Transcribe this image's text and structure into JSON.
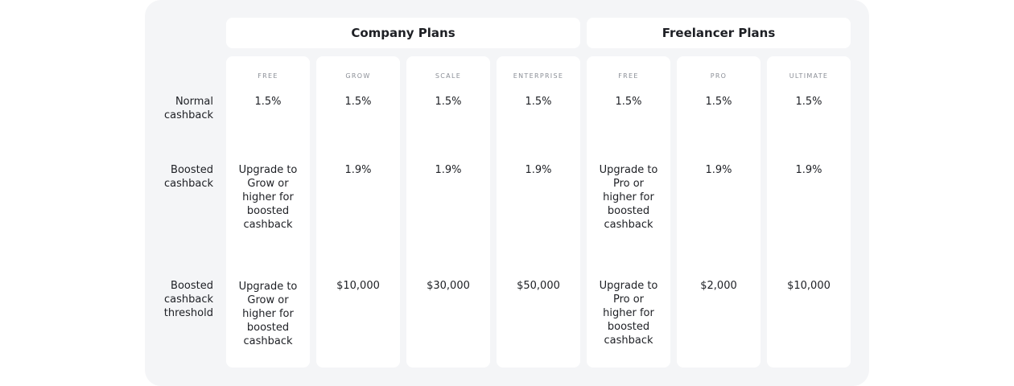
{
  "groups": [
    {
      "label": "Company Plans"
    },
    {
      "label": "Freelancer Plans"
    }
  ],
  "rows": [
    {
      "label": "Normal cashback"
    },
    {
      "label": "Boosted cashback"
    },
    {
      "label": "Boosted cashback threshold"
    }
  ],
  "plans": [
    {
      "name": "FREE",
      "normal": "1.5%",
      "boosted": "Upgrade to Grow or higher for boosted cashback",
      "threshold": "Upgrade to Grow or higher for boosted cashback"
    },
    {
      "name": "GROW",
      "normal": "1.5%",
      "boosted": "1.9%",
      "threshold": "$10,000"
    },
    {
      "name": "SCALE",
      "normal": "1.5%",
      "boosted": "1.9%",
      "threshold": "$30,000"
    },
    {
      "name": "ENTERPRISE",
      "normal": "1.5%",
      "boosted": "1.9%",
      "threshold": "$50,000"
    },
    {
      "name": "FREE",
      "normal": "1.5%",
      "boosted": "Upgrade to Pro or higher for boosted cashback",
      "threshold": "Upgrade to Pro or higher for boosted cashback"
    },
    {
      "name": "PRO",
      "normal": "1.5%",
      "boosted": "1.9%",
      "threshold": "$2,000"
    },
    {
      "name": "ULTIMATE",
      "normal": "1.5%",
      "boosted": "1.9%",
      "threshold": "$10,000"
    }
  ]
}
